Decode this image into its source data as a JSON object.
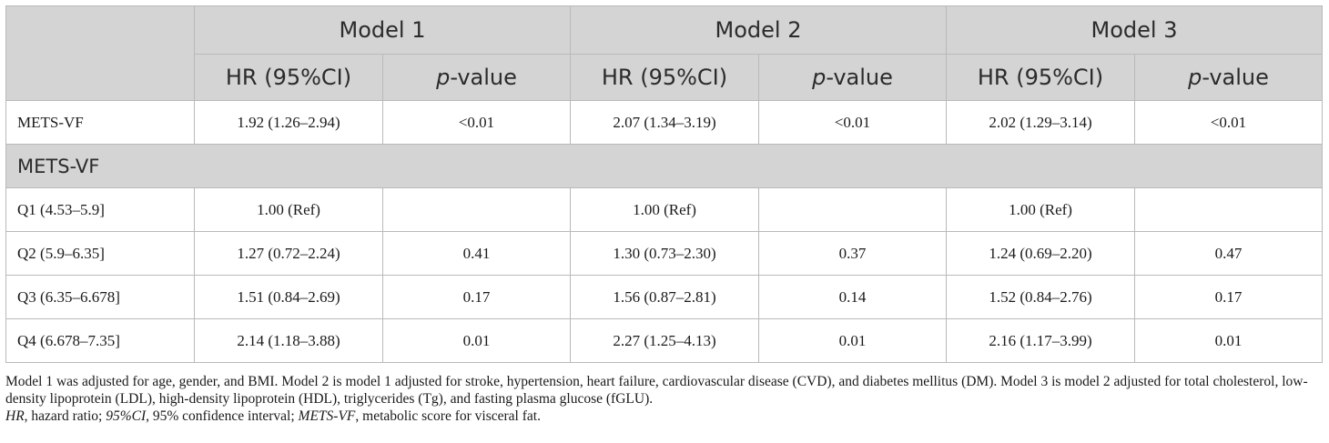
{
  "table": {
    "groups": [
      "Model 1",
      "Model 2",
      "Model 3"
    ],
    "subheaders": {
      "hr": "HR (95%CI)",
      "p_italic": "p",
      "p_rest": "-value"
    },
    "row_mets": {
      "label": "METS-VF",
      "cells": [
        "1.92 (1.26–2.94)",
        "<0.01",
        "2.07 (1.34–3.19)",
        "<0.01",
        "2.02 (1.29–3.14)",
        "<0.01"
      ]
    },
    "section_label": "METS-VF",
    "rows": [
      {
        "label": "Q1 (4.53–5.9]",
        "cells": [
          "1.00 (Ref)",
          "",
          "1.00 (Ref)",
          "",
          "1.00 (Ref)",
          ""
        ]
      },
      {
        "label": "Q2 (5.9–6.35]",
        "cells": [
          "1.27 (0.72–2.24)",
          "0.41",
          "1.30 (0.73–2.30)",
          "0.37",
          "1.24 (0.69–2.20)",
          "0.47"
        ]
      },
      {
        "label": "Q3 (6.35–6.678]",
        "cells": [
          "1.51 (0.84–2.69)",
          "0.17",
          "1.56 (0.87–2.81)",
          "0.14",
          "1.52 (0.84–2.76)",
          "0.17"
        ]
      },
      {
        "label": "Q4 (6.678–7.35]",
        "cells": [
          "2.14 (1.18–3.88)",
          "0.01",
          "2.27 (1.25–4.13)",
          "0.01",
          "2.16 (1.17–3.99)",
          "0.01"
        ]
      }
    ]
  },
  "notes": {
    "models": "Model 1 was adjusted for age, gender, and BMI. Model 2 is model 1 adjusted for stroke, hypertension, heart failure, cardiovascular disease (CVD), and diabetes mellitus (DM). Model 3 is model 2 adjusted for total cholesterol, low-density lipoprotein (LDL), high-density lipoprotein (HDL), triglycerides (Tg), and fasting plasma glucose (fGLU).",
    "abbrev": [
      {
        "term": "HR",
        "def": ", hazard ratio; "
      },
      {
        "term": "95%CI",
        "def": ", 95% confidence interval; "
      },
      {
        "term": "METS-VF",
        "def": ", metabolic score for visceral fat."
      }
    ]
  }
}
